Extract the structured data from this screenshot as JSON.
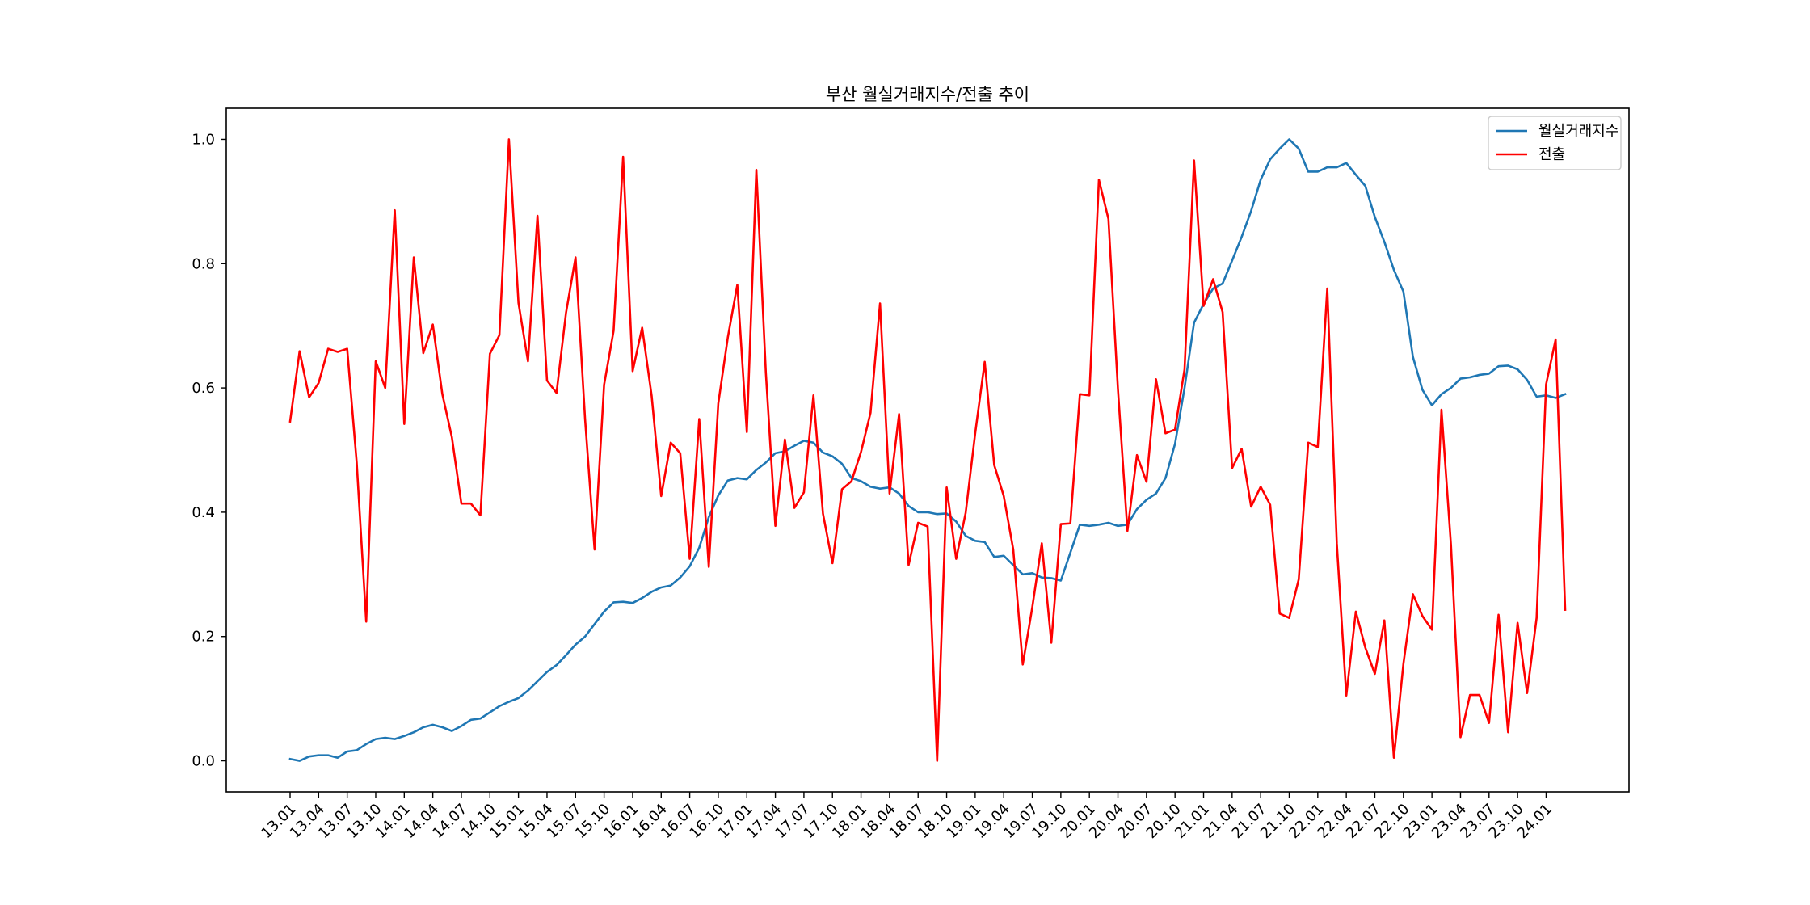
{
  "chart_data": {
    "type": "line",
    "title": "부산 월실거래지수/전출 추이",
    "xlabel": "",
    "ylabel": "",
    "ylim": [
      -0.05,
      1.05
    ],
    "yticks": [
      0.0,
      0.2,
      0.4,
      0.6,
      0.8,
      1.0
    ],
    "ytick_labels": [
      "0.0",
      "0.2",
      "0.4",
      "0.6",
      "0.8",
      "1.0"
    ],
    "x_tick_labels": [
      "13.01",
      "13.04",
      "13.07",
      "13.10",
      "14.01",
      "14.04",
      "14.07",
      "14.10",
      "15.01",
      "15.04",
      "15.07",
      "15.10",
      "16.01",
      "16.04",
      "16.07",
      "16.10",
      "17.01",
      "17.04",
      "17.07",
      "17.10",
      "18.01",
      "18.04",
      "18.07",
      "18.10",
      "19.01",
      "19.04",
      "19.07",
      "19.10",
      "20.01",
      "20.04",
      "20.07",
      "20.10",
      "21.01",
      "21.04",
      "21.07",
      "21.10",
      "22.01",
      "22.04",
      "22.07",
      "22.10",
      "23.01",
      "23.04",
      "23.07",
      "23.10",
      "24.01"
    ],
    "legend_position": "top-right",
    "grid": false,
    "series": [
      {
        "name": "월실거래지수",
        "color": "#1f77b4",
        "values": [
          0.003,
          0.0,
          0.007,
          0.009,
          0.009,
          0.005,
          0.015,
          0.017,
          0.027,
          0.035,
          0.037,
          0.035,
          0.04,
          0.046,
          0.054,
          0.058,
          0.054,
          0.048,
          0.056,
          0.066,
          0.068,
          0.078,
          0.088,
          0.095,
          0.101,
          0.113,
          0.128,
          0.143,
          0.154,
          0.17,
          0.187,
          0.2,
          0.22,
          0.24,
          0.255,
          0.256,
          0.254,
          0.262,
          0.272,
          0.279,
          0.282,
          0.295,
          0.313,
          0.343,
          0.392,
          0.427,
          0.451,
          0.455,
          0.453,
          0.468,
          0.48,
          0.495,
          0.498,
          0.507,
          0.515,
          0.512,
          0.496,
          0.49,
          0.478,
          0.455,
          0.45,
          0.441,
          0.438,
          0.44,
          0.43,
          0.41,
          0.4,
          0.4,
          0.397,
          0.398,
          0.385,
          0.362,
          0.354,
          0.352,
          0.328,
          0.33,
          0.315,
          0.3,
          0.302,
          0.295,
          0.294,
          0.29,
          0.335,
          0.38,
          0.378,
          0.38,
          0.383,
          0.378,
          0.38,
          0.405,
          0.42,
          0.43,
          0.455,
          0.51,
          0.6,
          0.705,
          0.735,
          0.76,
          0.768,
          0.805,
          0.843,
          0.885,
          0.935,
          0.968,
          0.985,
          1.0,
          0.985,
          0.948,
          0.948,
          0.955,
          0.955,
          0.962,
          0.943,
          0.925,
          0.875,
          0.835,
          0.79,
          0.755,
          0.65,
          0.597,
          0.572,
          0.59,
          0.6,
          0.615,
          0.617,
          0.621,
          0.623,
          0.635,
          0.636,
          0.63,
          0.613,
          0.586,
          0.588,
          0.584,
          0.59
        ]
      },
      {
        "name": "전출",
        "color": "#ff0000",
        "values": [
          0.546,
          0.659,
          0.585,
          0.608,
          0.663,
          0.658,
          0.663,
          0.48,
          0.224,
          0.643,
          0.6,
          0.886,
          0.542,
          0.81,
          0.656,
          0.702,
          0.59,
          0.521,
          0.414,
          0.414,
          0.395,
          0.655,
          0.685,
          1.0,
          0.737,
          0.643,
          0.877,
          0.612,
          0.592,
          0.721,
          0.81,
          0.55,
          0.34,
          0.605,
          0.692,
          0.972,
          0.627,
          0.697,
          0.587,
          0.426,
          0.512,
          0.495,
          0.325,
          0.55,
          0.312,
          0.575,
          0.681,
          0.766,
          0.529,
          0.951,
          0.624,
          0.378,
          0.517,
          0.407,
          0.432,
          0.588,
          0.398,
          0.318,
          0.437,
          0.45,
          0.497,
          0.56,
          0.736,
          0.43,
          0.558,
          0.315,
          0.383,
          0.377,
          0.0,
          0.44,
          0.325,
          0.399,
          0.527,
          0.642,
          0.476,
          0.426,
          0.34,
          0.155,
          0.247,
          0.35,
          0.19,
          0.381,
          0.382,
          0.59,
          0.588,
          0.935,
          0.872,
          0.598,
          0.37,
          0.492,
          0.449,
          0.614,
          0.527,
          0.533,
          0.63,
          0.966,
          0.732,
          0.775,
          0.722,
          0.471,
          0.502,
          0.409,
          0.441,
          0.412,
          0.237,
          0.23,
          0.292,
          0.512,
          0.505,
          0.76,
          0.35,
          0.105,
          0.24,
          0.182,
          0.14,
          0.226,
          0.005,
          0.156,
          0.268,
          0.233,
          0.211,
          0.565,
          0.347,
          0.038,
          0.106,
          0.106,
          0.061,
          0.235,
          0.046,
          0.222,
          0.109,
          0.23,
          0.606,
          0.678,
          0.243
        ]
      }
    ]
  }
}
